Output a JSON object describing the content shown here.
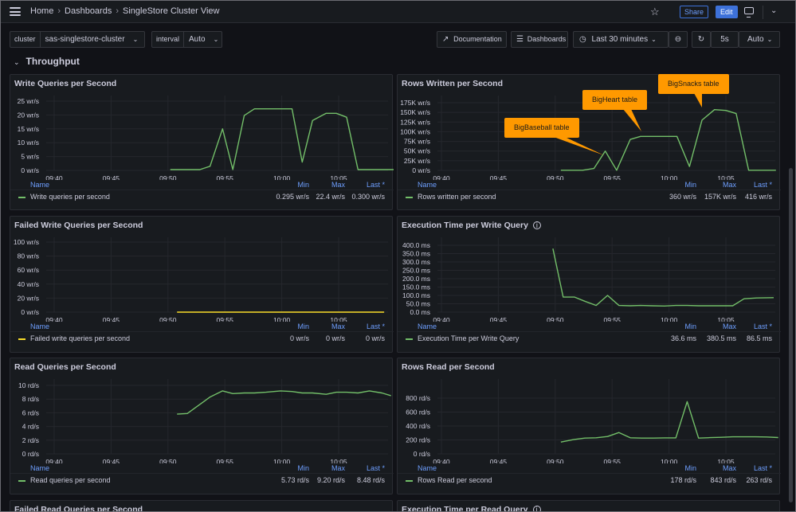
{
  "header": {
    "breadcrumb": [
      "Home",
      "Dashboards",
      "SingleStore Cluster View"
    ],
    "share_label": "Share",
    "edit_label": "Edit"
  },
  "controls": {
    "cluster_label": "cluster",
    "cluster_value": "sas-singlestore-cluster",
    "interval_label": "interval",
    "interval_value": "Auto",
    "documentation_label": "Documentation",
    "dashboards_label": "Dashboards",
    "time_range": "Last 30 minutes",
    "refresh_interval": "5s",
    "refresh_mode": "Auto"
  },
  "row_title": "Throughput",
  "legend_headers": {
    "min": "Min",
    "max": "Max",
    "last": "Last *",
    "name": "Name"
  },
  "colors": {
    "green": "#73bf69",
    "yellow": "#fade2a",
    "annotation": "#ff9900",
    "blue": "#6e9fff"
  },
  "chart_data": [
    {
      "id": "write_qps",
      "type": "line",
      "title": "Write Queries per Second",
      "series": [
        {
          "name": "Write queries per second",
          "color": "#73bf69",
          "x": [
            50.2,
            51.7,
            52.8,
            53.7,
            54.8,
            55.7,
            56.7,
            57.6,
            58.6,
            59.6,
            60.9,
            61.8,
            62.7,
            63.9,
            64.8,
            65.7,
            66.7,
            67.5,
            68.5,
            70.5
          ],
          "values": [
            0.3,
            0.3,
            0.3,
            1.5,
            15,
            0.3,
            19.8,
            22.2,
            22.2,
            22.2,
            22.2,
            3,
            18,
            20.6,
            20.6,
            19.2,
            0.3,
            0.3,
            0.3,
            0.3
          ]
        }
      ],
      "xticks": [
        "09:40",
        "09:45",
        "09:50",
        "09:55",
        "10:00",
        "10:05"
      ],
      "yticks": [
        "25 wr/s",
        "20 wr/s",
        "15 wr/s",
        "10 wr/s",
        "5 wr/s",
        "0 wr/s"
      ],
      "ylim": [
        0,
        25
      ],
      "legend": {
        "min": "0.295 wr/s",
        "max": "22.4 wr/s",
        "last": "0.300 wr/s"
      }
    },
    {
      "id": "rows_written",
      "type": "line",
      "title": "Rows Written per Second",
      "series": [
        {
          "name": "Rows written per second",
          "color": "#73bf69",
          "x": [
            50.5,
            52.4,
            53.4,
            54.4,
            55.4,
            56.6,
            57.5,
            58.6,
            59.8,
            60.7,
            61.8,
            62.9,
            64.0,
            65.0,
            65.9,
            67.0,
            69.4
          ],
          "values": [
            0.4,
            0.4,
            5,
            50,
            0.4,
            80,
            88,
            88,
            88,
            88,
            10,
            130,
            157,
            155,
            147,
            0.4,
            0.4
          ]
        }
      ],
      "xticks": [
        "09:40",
        "09:45",
        "09:50",
        "09:55",
        "10:00",
        "10:05"
      ],
      "yticks": [
        "175K wr/s",
        "150K wr/s",
        "125K wr/s",
        "100K wr/s",
        "75K wr/s",
        "50K wr/s",
        "25K wr/s",
        "0 wr/s"
      ],
      "ylim": [
        0,
        175
      ],
      "annotations": [
        "BigBaseball table",
        "BigHeart table",
        "BigSnacks table"
      ],
      "legend": {
        "min": "360 wr/s",
        "max": "157K wr/s",
        "last": "416 wr/s"
      }
    },
    {
      "id": "failed_write_qps",
      "type": "line",
      "title": "Failed Write Queries per Second",
      "series": [
        {
          "name": "Failed write queries per second",
          "color": "#fade2a",
          "x": [
            50.8,
            69.0
          ],
          "values": [
            0,
            0
          ]
        }
      ],
      "xticks": [
        "09:40",
        "09:45",
        "09:50",
        "09:55",
        "10:00",
        "10:05"
      ],
      "yticks": [
        "100 wr/s",
        "80 wr/s",
        "60 wr/s",
        "40 wr/s",
        "20 wr/s",
        "0 wr/s"
      ],
      "ylim": [
        0,
        100
      ],
      "legend": {
        "min": "0 wr/s",
        "max": "0 wr/s",
        "last": "0 wr/s"
      }
    },
    {
      "id": "exec_time_write",
      "type": "line",
      "title": "Execution Time per Write Query",
      "has_info": true,
      "series": [
        {
          "name": "Execution Time per Write Query",
          "color": "#73bf69",
          "x": [
            49.8,
            50.7,
            51.7,
            52.6,
            53.6,
            54.6,
            55.6,
            56.6,
            57.5,
            58.5,
            59.6,
            60.6,
            61.6,
            62.6,
            63.6,
            64.6,
            65.6,
            66.6,
            67.7,
            69.2
          ],
          "values": [
            380,
            90,
            90,
            65,
            40,
            100,
            40,
            38,
            40,
            38,
            36.6,
            40,
            40,
            38,
            38,
            38,
            38,
            80,
            85,
            86.5
          ]
        }
      ],
      "xticks": [
        "09:40",
        "09:45",
        "09:50",
        "09:55",
        "10:00",
        "10:05"
      ],
      "yticks": [
        "400.0 ms",
        "350.0 ms",
        "300.0 ms",
        "250.0 ms",
        "200.0 ms",
        "150.0 ms",
        "100.0 ms",
        "50.0 ms",
        "0.0 ms"
      ],
      "ylim": [
        0,
        400
      ],
      "legend": {
        "min": "36.6 ms",
        "max": "380.5 ms",
        "last": "86.5 ms"
      }
    },
    {
      "id": "read_qps",
      "type": "line",
      "title": "Read Queries per Second",
      "series": [
        {
          "name": "Read queries per second",
          "color": "#73bf69",
          "x": [
            50.8,
            51.7,
            53.7,
            54.8,
            55.7,
            56.7,
            57.6,
            58.6,
            59.9,
            60.9,
            61.8,
            62.7,
            63.9,
            64.8,
            65.7,
            66.7,
            67.7,
            68.8,
            69.6
          ],
          "values": [
            5.8,
            5.9,
            8.3,
            9.2,
            8.8,
            8.9,
            8.9,
            9.0,
            9.2,
            9.1,
            8.9,
            8.9,
            8.7,
            9.0,
            9.0,
            8.9,
            9.2,
            8.9,
            8.5
          ]
        }
      ],
      "xticks": [
        "09:40",
        "09:45",
        "09:50",
        "09:55",
        "10:00",
        "10:05"
      ],
      "yticks": [
        "10 rd/s",
        "8 rd/s",
        "6 rd/s",
        "4 rd/s",
        "2 rd/s",
        "0 rd/s"
      ],
      "ylim": [
        0,
        10
      ],
      "legend": {
        "min": "5.73 rd/s",
        "max": "9.20 rd/s",
        "last": "8.48 rd/s"
      }
    },
    {
      "id": "rows_read",
      "type": "line",
      "title": "Rows Read per Second",
      "series": [
        {
          "name": "Rows Read per second",
          "color": "#73bf69",
          "x": [
            50.5,
            51.6,
            52.6,
            53.6,
            54.6,
            55.6,
            56.6,
            57.6,
            58.6,
            59.6,
            60.6,
            61.6,
            62.6,
            63.6,
            64.6,
            65.6,
            66.6,
            67.6,
            68.6,
            69.6
          ],
          "values": [
            190,
            230,
            255,
            260,
            280,
            345,
            260,
            255,
            255,
            258,
            258,
            843,
            255,
            262,
            268,
            275,
            275,
            275,
            272,
            263
          ]
        }
      ],
      "xticks": [
        "09:40",
        "09:45",
        "09:50",
        "09:55",
        "10:00",
        "10:05"
      ],
      "yticks": [
        "800 rd/s",
        "600 rd/s",
        "400 rd/s",
        "200 rd/s",
        "0 rd/s"
      ],
      "ylim": [
        0,
        900
      ],
      "legend": {
        "min": "178 rd/s",
        "max": "843 rd/s",
        "last": "263 rd/s"
      }
    }
  ],
  "bottom_panels": [
    "Failed Read Queries per Second",
    "Execution Time per Read Query"
  ]
}
